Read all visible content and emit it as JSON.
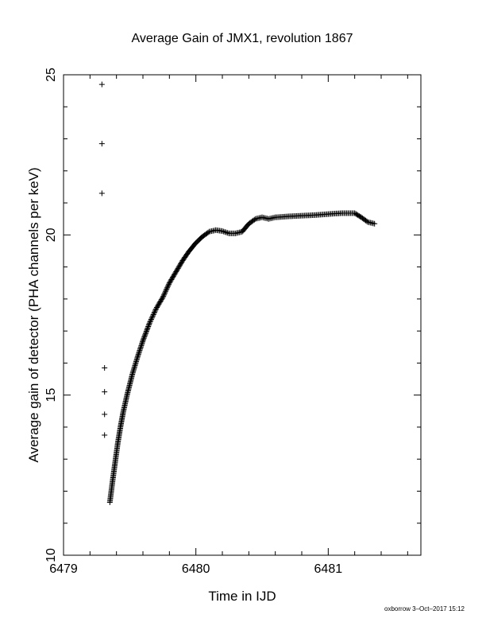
{
  "chart_data": {
    "type": "scatter",
    "title": "Average Gain of JMX1, revolution 1867",
    "xlabel": "Time in IJD",
    "ylabel": "Average gain of detector (PHA channels per keV)",
    "footer": "oxborrow  3–Oct–2017 15:12",
    "xlim": [
      6479,
      6481.7
    ],
    "ylim": [
      10,
      25
    ],
    "x_ticks": [
      6479,
      6480,
      6481
    ],
    "x_tick_labels": [
      "6479",
      "6480",
      "6481"
    ],
    "y_ticks": [
      10,
      15,
      20,
      25
    ],
    "y_tick_labels": [
      "10",
      "15",
      "20",
      "25"
    ],
    "x_minor_step": 0.2,
    "y_minor_step": 1,
    "grid": false,
    "marker": "+",
    "outliers": {
      "x": [
        6479.29,
        6479.29,
        6479.29,
        6479.31,
        6479.31,
        6479.31,
        6479.31
      ],
      "y": [
        24.7,
        22.85,
        21.3,
        15.85,
        15.1,
        14.4,
        13.75
      ]
    },
    "curve": {
      "x": [
        6479.35,
        6479.37,
        6479.39,
        6479.41,
        6479.43,
        6479.45,
        6479.48,
        6479.52,
        6479.56,
        6479.6,
        6479.65,
        6479.7,
        6479.75,
        6479.8,
        6479.85,
        6479.9,
        6479.95,
        6480.0,
        6480.05,
        6480.1,
        6480.15,
        6480.2,
        6480.25,
        6480.3,
        6480.35,
        6480.4,
        6480.45,
        6480.5,
        6480.55,
        6480.6,
        6480.7,
        6480.8,
        6480.9,
        6481.0,
        6481.1,
        6481.2,
        6481.25,
        6481.3,
        6481.35
      ],
      "y": [
        11.65,
        12.3,
        12.9,
        13.5,
        14.0,
        14.45,
        15.0,
        15.65,
        16.2,
        16.7,
        17.25,
        17.7,
        18.05,
        18.5,
        18.85,
        19.2,
        19.5,
        19.75,
        19.95,
        20.1,
        20.15,
        20.12,
        20.05,
        20.05,
        20.1,
        20.35,
        20.5,
        20.55,
        20.5,
        20.55,
        20.58,
        20.6,
        20.62,
        20.65,
        20.68,
        20.68,
        20.55,
        20.4,
        20.35
      ]
    }
  }
}
